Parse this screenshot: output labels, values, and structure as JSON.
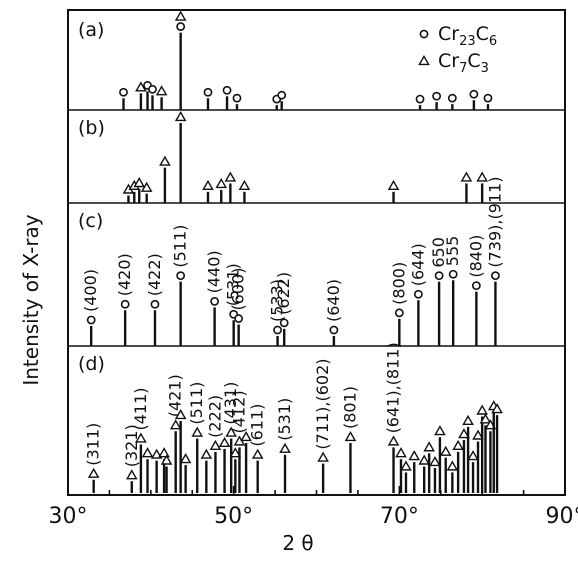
{
  "chart_data": {
    "type": "stick",
    "xlabel": "2 θ",
    "ylabel": "Intensity of X-ray",
    "xlim": [
      30,
      90
    ],
    "xticks": [
      "30°",
      "50°",
      "70°",
      "90°"
    ],
    "legend": [
      {
        "marker": "circle",
        "name_main": "Cr",
        "name_sub1": "23",
        "name_mid": "C",
        "name_sub2": "6"
      },
      {
        "marker": "triangle",
        "name_main": "Cr",
        "name_sub1": "7",
        "name_mid": "C",
        "name_sub2": "3"
      }
    ],
    "panels": [
      {
        "label": "(a)",
        "peaks": [
          {
            "x": 36.7,
            "y": 0.12,
            "m": "o"
          },
          {
            "x": 38.8,
            "y": 0.17,
            "m": "t"
          },
          {
            "x": 39.6,
            "y": 0.19,
            "m": "o"
          },
          {
            "x": 40.2,
            "y": 0.15,
            "m": "o"
          },
          {
            "x": 41.3,
            "y": 0.13,
            "m": "t"
          },
          {
            "x": 43.6,
            "y": 0.79,
            "m": "o",
            "m2": "t"
          },
          {
            "x": 46.9,
            "y": 0.12,
            "m": "o"
          },
          {
            "x": 49.2,
            "y": 0.14,
            "m": "o"
          },
          {
            "x": 50.4,
            "y": 0.06,
            "m": "o"
          },
          {
            "x": 55.2,
            "y": 0.05,
            "m": "o"
          },
          {
            "x": 55.8,
            "y": 0.09,
            "m": "o"
          },
          {
            "x": 72.5,
            "y": 0.05,
            "m": "o"
          },
          {
            "x": 74.5,
            "y": 0.08,
            "m": "o"
          },
          {
            "x": 76.4,
            "y": 0.06,
            "m": "o"
          },
          {
            "x": 79.0,
            "y": 0.1,
            "m": "o"
          },
          {
            "x": 80.7,
            "y": 0.06,
            "m": "o"
          }
        ]
      },
      {
        "label": "(b)",
        "peaks": [
          {
            "x": 37.3,
            "y": 0.08,
            "m": "t"
          },
          {
            "x": 38.0,
            "y": 0.12,
            "m": "t"
          },
          {
            "x": 38.6,
            "y": 0.15,
            "m": "t"
          },
          {
            "x": 39.5,
            "y": 0.1,
            "m": "t"
          },
          {
            "x": 41.7,
            "y": 0.38,
            "m": "t"
          },
          {
            "x": 43.6,
            "y": 0.86,
            "m": "t"
          },
          {
            "x": 46.9,
            "y": 0.12,
            "m": "t"
          },
          {
            "x": 48.5,
            "y": 0.14,
            "m": "t"
          },
          {
            "x": 49.6,
            "y": 0.21,
            "m": "t"
          },
          {
            "x": 51.3,
            "y": 0.12,
            "m": "t"
          },
          {
            "x": 69.3,
            "y": 0.12,
            "m": "t"
          },
          {
            "x": 78.1,
            "y": 0.21,
            "m": "t"
          },
          {
            "x": 80.0,
            "y": 0.21,
            "m": "t"
          }
        ]
      },
      {
        "label": "(c)",
        "peaks": [
          {
            "x": 32.8,
            "y": 0.14,
            "m": "o",
            "hkl": "(400)"
          },
          {
            "x": 36.9,
            "y": 0.25,
            "m": "o",
            "hkl": "(420)"
          },
          {
            "x": 40.5,
            "y": 0.25,
            "m": "o",
            "hkl": "(422)"
          },
          {
            "x": 43.6,
            "y": 0.45,
            "m": "o",
            "hkl": "(511)"
          },
          {
            "x": 47.7,
            "y": 0.27,
            "m": "o",
            "hkl": "(440)"
          },
          {
            "x": 50.0,
            "y": 0.18,
            "m": "o",
            "hkl": "(531)"
          },
          {
            "x": 50.6,
            "y": 0.15,
            "m": "o",
            "hkl": "(600)"
          },
          {
            "x": 55.3,
            "y": 0.07,
            "m": "o",
            "hkl": "(533)"
          },
          {
            "x": 56.1,
            "y": 0.12,
            "m": "o",
            "hkl": "(622)"
          },
          {
            "x": 62.1,
            "y": 0.07,
            "m": "o",
            "hkl": "(640)"
          },
          {
            "x": 70.0,
            "y": 0.19,
            "m": "o",
            "hkl": "(800)"
          },
          {
            "x": 72.3,
            "y": 0.32,
            "m": "o",
            "hkl": "(644)"
          },
          {
            "x": 74.8,
            "y": 0.45,
            "m": "o",
            "hkl": "650"
          },
          {
            "x": 76.5,
            "y": 0.46,
            "m": "o",
            "hkl": "555"
          },
          {
            "x": 79.3,
            "y": 0.38,
            "m": "o",
            "hkl": "(840)"
          },
          {
            "x": 81.6,
            "y": 0.45,
            "m": "o",
            "hkl": "(739),(911)"
          }
        ]
      },
      {
        "label": "(d)",
        "peaks": [
          {
            "x": 33.1,
            "y": 0.09,
            "m": "t",
            "hkl": "(311)"
          },
          {
            "x": 37.7,
            "y": 0.08,
            "m": "t",
            "hkl": "(321)"
          },
          {
            "x": 38.8,
            "y": 0.33,
            "m": "t",
            "hkl": "(411)"
          },
          {
            "x": 39.6,
            "y": 0.23,
            "m": "t"
          },
          {
            "x": 40.7,
            "y": 0.22,
            "m": "t"
          },
          {
            "x": 41.6,
            "y": 0.23,
            "m": "t"
          },
          {
            "x": 41.9,
            "y": 0.18,
            "m": "t"
          },
          {
            "x": 43.0,
            "y": 0.42,
            "m": "t",
            "hkl": "(421)"
          },
          {
            "x": 43.6,
            "y": 0.49,
            "m": "t"
          },
          {
            "x": 44.2,
            "y": 0.19,
            "m": "t"
          },
          {
            "x": 45.6,
            "y": 0.37,
            "m": "t",
            "hkl": "(511)"
          },
          {
            "x": 46.7,
            "y": 0.22,
            "m": "t"
          },
          {
            "x": 47.8,
            "y": 0.28,
            "m": "t",
            "hkl": "(222)"
          },
          {
            "x": 48.9,
            "y": 0.3,
            "m": "t"
          },
          {
            "x": 49.7,
            "y": 0.37,
            "m": "t",
            "hkl": "(431)"
          },
          {
            "x": 50.2,
            "y": 0.23,
            "m": "t"
          },
          {
            "x": 50.7,
            "y": 0.31,
            "m": "t",
            "hkl": "(412)"
          },
          {
            "x": 51.5,
            "y": 0.34,
            "m": "t"
          },
          {
            "x": 52.9,
            "y": 0.22,
            "m": "t",
            "hkl": "(611)"
          },
          {
            "x": 56.2,
            "y": 0.26,
            "m": "t",
            "hkl": "(531)"
          },
          {
            "x": 60.8,
            "y": 0.2,
            "m": "t",
            "hkl": "(711),(602)"
          },
          {
            "x": 64.1,
            "y": 0.34,
            "m": "t",
            "hkl": "(801)"
          },
          {
            "x": 69.3,
            "y": 0.31,
            "m": "t",
            "hkl": "(641),(811)"
          },
          {
            "x": 70.2,
            "y": 0.23,
            "m": "t"
          },
          {
            "x": 70.8,
            "y": 0.14,
            "m": "t"
          },
          {
            "x": 71.8,
            "y": 0.21,
            "m": "t"
          },
          {
            "x": 73.0,
            "y": 0.18,
            "m": "t"
          },
          {
            "x": 73.6,
            "y": 0.27,
            "m": "t"
          },
          {
            "x": 74.3,
            "y": 0.17,
            "m": "t"
          },
          {
            "x": 74.9,
            "y": 0.38,
            "m": "t"
          },
          {
            "x": 75.6,
            "y": 0.24,
            "m": "t"
          },
          {
            "x": 76.4,
            "y": 0.14,
            "m": "t"
          },
          {
            "x": 77.1,
            "y": 0.28,
            "m": "t"
          },
          {
            "x": 77.8,
            "y": 0.36,
            "m": "t"
          },
          {
            "x": 78.3,
            "y": 0.45,
            "m": "t"
          },
          {
            "x": 78.9,
            "y": 0.21,
            "m": "t"
          },
          {
            "x": 79.5,
            "y": 0.35,
            "m": "t"
          },
          {
            "x": 80.0,
            "y": 0.52,
            "m": "t"
          },
          {
            "x": 80.4,
            "y": 0.46,
            "m": "t"
          },
          {
            "x": 81.0,
            "y": 0.42,
            "m": "t"
          },
          {
            "x": 81.4,
            "y": 0.55,
            "m": "t"
          },
          {
            "x": 81.8,
            "y": 0.53,
            "m": "t"
          }
        ]
      }
    ]
  }
}
